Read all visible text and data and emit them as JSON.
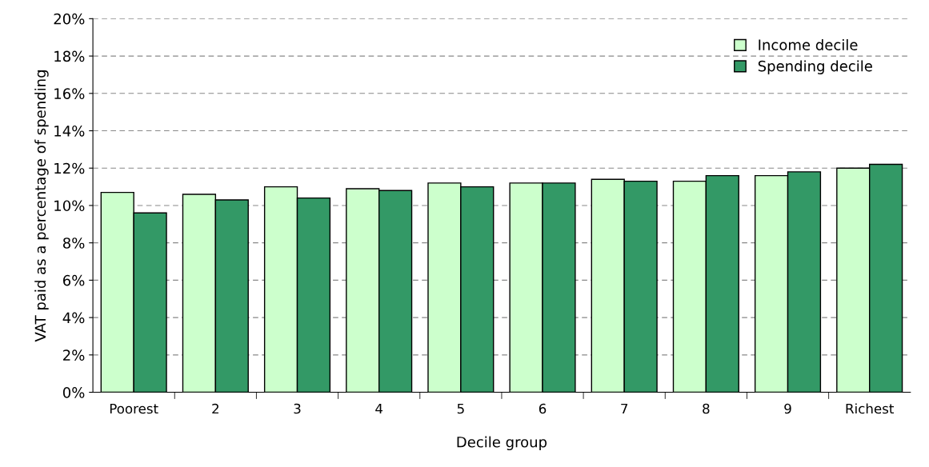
{
  "chart_data": {
    "type": "bar",
    "xlabel": "Decile group",
    "ylabel": "VAT paid as a percentage of spending",
    "categories": [
      "Poorest",
      "2",
      "3",
      "4",
      "5",
      "6",
      "7",
      "8",
      "9",
      "Richest"
    ],
    "series": [
      {
        "name": "Income decile",
        "color": "#ccffcc",
        "values": [
          10.7,
          10.6,
          11.0,
          10.9,
          11.2,
          11.2,
          11.4,
          11.3,
          11.6,
          12.0
        ]
      },
      {
        "name": "Spending decile",
        "color": "#339966",
        "values": [
          9.6,
          10.3,
          10.4,
          10.8,
          11.0,
          11.2,
          11.3,
          11.6,
          11.8,
          12.2
        ]
      }
    ],
    "ylim": [
      0,
      20
    ],
    "yticks": [
      {
        "value": 0,
        "label": "0%"
      },
      {
        "value": 2,
        "label": "2%"
      },
      {
        "value": 4,
        "label": "4%"
      },
      {
        "value": 6,
        "label": "6%"
      },
      {
        "value": 8,
        "label": "8%"
      },
      {
        "value": 10,
        "label": "10%"
      },
      {
        "value": 12,
        "label": "12%"
      },
      {
        "value": 14,
        "label": "14%"
      },
      {
        "value": 16,
        "label": "16%"
      },
      {
        "value": 18,
        "label": "18%"
      },
      {
        "value": 20,
        "label": "20%"
      }
    ],
    "grid": "y",
    "legend": "top right"
  }
}
